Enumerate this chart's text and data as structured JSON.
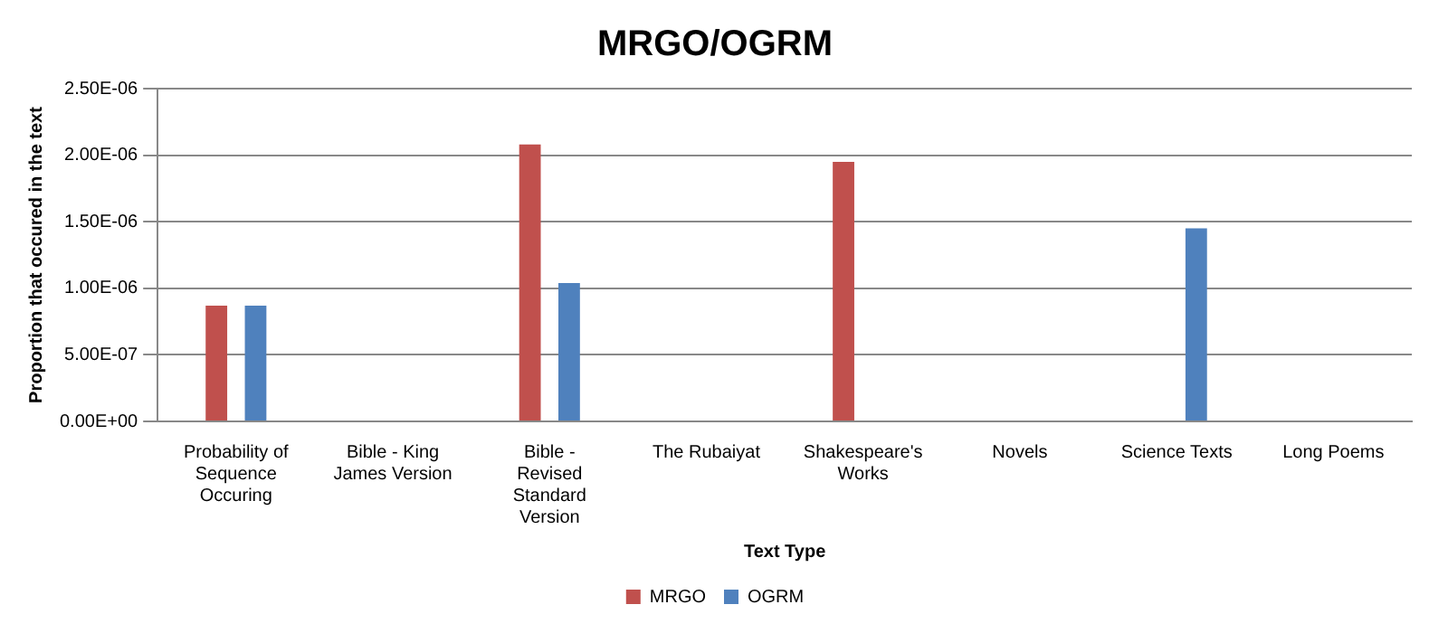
{
  "chart_data": {
    "type": "bar",
    "title": "MRGO/OGRM",
    "xlabel": "Text Type",
    "ylabel": "Proportion that occured in the text",
    "categories": [
      "Probability of Sequence Occuring",
      "Bible - King James Version",
      "Bible - Revised Standard Version",
      "The Rubaiyat",
      "Shakespeare's Works",
      "Novels",
      "Science Texts",
      "Long Poems"
    ],
    "series": [
      {
        "name": "MRGO",
        "color": "#c0504d",
        "values": [
          8.7e-07,
          0,
          2.08e-06,
          0,
          1.95e-06,
          0,
          0,
          0
        ]
      },
      {
        "name": "OGRM",
        "color": "#4f81bd",
        "values": [
          8.7e-07,
          0,
          1.04e-06,
          0,
          0,
          0,
          1.45e-06,
          0
        ]
      }
    ],
    "ylim": [
      0,
      2.5e-06
    ],
    "yticks": [
      {
        "value": 0,
        "label": "0.00E+00"
      },
      {
        "value": 5e-07,
        "label": "5.00E-07"
      },
      {
        "value": 1e-06,
        "label": "1.00E-06"
      },
      {
        "value": 1.5e-06,
        "label": "1.50E-06"
      },
      {
        "value": 2e-06,
        "label": "2.00E-06"
      },
      {
        "value": 2.5e-06,
        "label": "2.50E-06"
      }
    ],
    "grid": "y",
    "legend": "bottom"
  }
}
